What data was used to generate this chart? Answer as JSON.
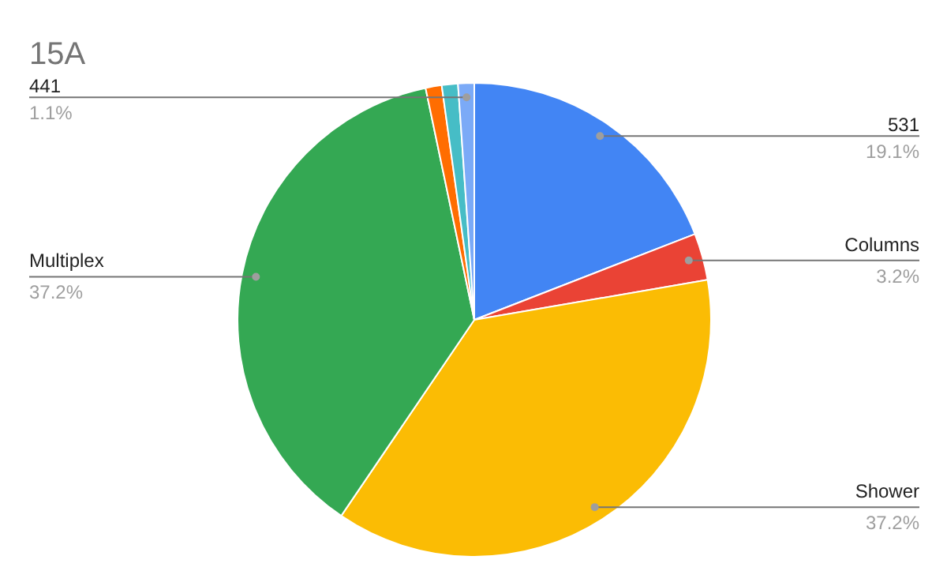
{
  "chart_data": {
    "type": "pie",
    "title": "15A",
    "categories": [
      "531",
      "Columns",
      "Shower",
      "Multiplex",
      null,
      null,
      "441"
    ],
    "values": [
      19.1,
      3.2,
      37.2,
      37.2,
      1.1,
      1.1,
      1.1
    ],
    "value_labels": [
      "19.1%",
      "3.2%",
      "37.2%",
      "37.2%",
      null,
      null,
      "1.1%"
    ],
    "colors": [
      "#4285f4",
      "#ea4335",
      "#fbbc04",
      "#34a853",
      "#ff6d01",
      "#46bdc6",
      "#7baaf7"
    ]
  }
}
